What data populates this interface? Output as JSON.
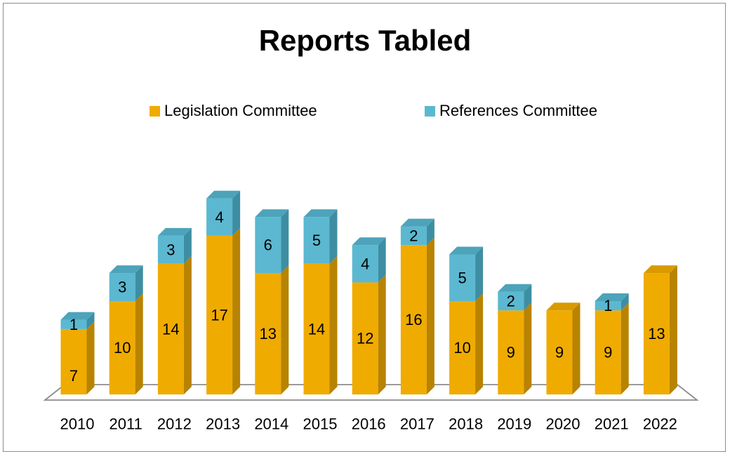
{
  "chart_data": {
    "type": "bar",
    "stacked": true,
    "title": "Reports Tabled",
    "categories": [
      "2010",
      "2011",
      "2012",
      "2013",
      "2014",
      "2015",
      "2016",
      "2017",
      "2018",
      "2019",
      "2020",
      "2021",
      "2022"
    ],
    "series": [
      {
        "name": "Legislation Committee",
        "values": [
          7,
          10,
          14,
          17,
          13,
          14,
          12,
          16,
          10,
          9,
          9,
          9,
          13
        ],
        "color": "#F0AB00"
      },
      {
        "name": "References Committee",
        "values": [
          1,
          3,
          3,
          4,
          6,
          5,
          4,
          2,
          5,
          2,
          null,
          1,
          null
        ],
        "color": "#5BB8D0"
      }
    ],
    "legend_position": "top",
    "grid": false,
    "three_d": true
  }
}
